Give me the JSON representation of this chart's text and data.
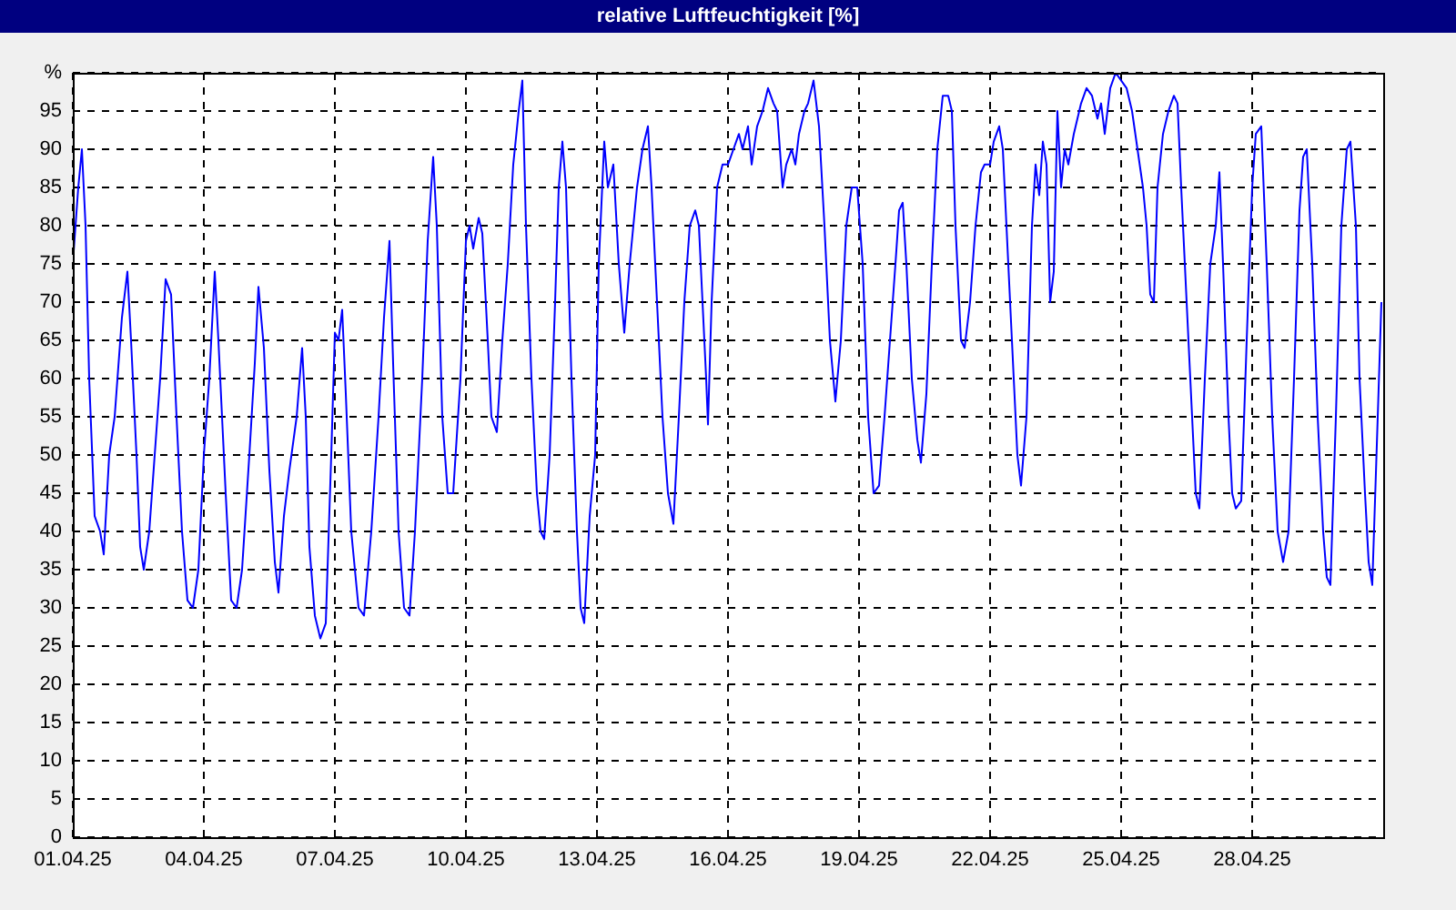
{
  "chart_data": {
    "type": "line",
    "title": "relative Luftfeuchtigkeit [%]",
    "grid": true,
    "marker": "none",
    "line_style": "solid",
    "xlim": [
      "--04-01",
      "--05-01"
    ],
    "xticks": [
      {
        "value": "--04-01",
        "label": "01.04.25"
      },
      {
        "value": "--04-04",
        "label": "04.04.25"
      },
      {
        "value": "--04-07",
        "label": "07.04.25"
      },
      {
        "value": "--04-10",
        "label": "10.04.25"
      },
      {
        "value": "--04-13",
        "label": "13.04.25"
      },
      {
        "value": "--04-16",
        "label": "16.04.25"
      },
      {
        "value": "--04-19",
        "label": "19.04.25"
      },
      {
        "value": "--04-22",
        "label": "22.04.25"
      },
      {
        "value": "--04-25",
        "label": "25.04.25"
      },
      {
        "value": "--04-28",
        "label": "28.04.25"
      }
    ],
    "ylim": [
      0,
      100
    ],
    "yticks": [
      0,
      5,
      10,
      15,
      20,
      25,
      30,
      35,
      40,
      45,
      50,
      55,
      60,
      65,
      70,
      75,
      80,
      85,
      90,
      95,
      {
        "value": 100,
        "label": "%"
      }
    ],
    "x": [
      "--04-01T00:00",
      "--04-01T03:00",
      "--04-01T05:00",
      "--04-01T07:00",
      "--04-01T09:00",
      "--04-01T12:00",
      "--04-01T15:00",
      "--04-01T17:00",
      "--04-01T20:00",
      "--04-01T23:00",
      "--04-02T03:00",
      "--04-02T06:00",
      "--04-02T08:00",
      "--04-02T11:00",
      "--04-02T13:00",
      "--04-02T15:00",
      "--04-02T18:00",
      "--04-02T21:00",
      "--04-03T00:00",
      "--04-03T03:00",
      "--04-03T06:00",
      "--04-03T09:00",
      "--04-03T12:00",
      "--04-03T15:00",
      "--04-03T18:00",
      "--04-03T21:00",
      "--04-04T00:00",
      "--04-04T03:00",
      "--04-04T06:00",
      "--04-04T08:00",
      "--04-04T12:00",
      "--04-04T15:00",
      "--04-04T18:00",
      "--04-04T21:00",
      "--04-05T01:00",
      "--04-05T04:00",
      "--04-05T06:00",
      "--04-05T09:00",
      "--04-05T12:00",
      "--04-05T15:00",
      "--04-05T17:00",
      "--04-05T20:00",
      "--04-05T23:00",
      "--04-06T03:00",
      "--04-06T06:00",
      "--04-06T08:00",
      "--04-06T10:00",
      "--04-06T13:00",
      "--04-06T16:00",
      "--04-06T19:00",
      "--04-06T22:00",
      "--04-07T00:00",
      "--04-07T02:00",
      "--04-07T04:00",
      "--04-07T06:00",
      "--04-07T09:00",
      "--04-07T13:00",
      "--04-07T16:00",
      "--04-07T20:00",
      "--04-08T00:00",
      "--04-08T03:00",
      "--04-08T06:00",
      "--04-08T08:00",
      "--04-08T11:00",
      "--04-08T14:00",
      "--04-08T17:00",
      "--04-08T20:00",
      "--04-09T00:00",
      "--04-09T03:00",
      "--04-09T06:00",
      "--04-09T08:00",
      "--04-09T11:00",
      "--04-09T14:00",
      "--04-09T17:00",
      "--04-09T21:00",
      "--04-10T00:00",
      "--04-10T02:00",
      "--04-10T04:00",
      "--04-10T07:00",
      "--04-10T09:00",
      "--04-10T12:00",
      "--04-10T14:00",
      "--04-10T17:00",
      "--04-10T20:00",
      "--04-10T23:00",
      "--04-11T02:00",
      "--04-11T05:00",
      "--04-11T07:00",
      "--04-11T09:00",
      "--04-11T12:00",
      "--04-11T15:00",
      "--04-11T17:00",
      "--04-11T19:00",
      "--04-11T22:00",
      "--04-12T01:00",
      "--04-12T03:00",
      "--04-12T05:00",
      "--04-12T07:00",
      "--04-12T10:00",
      "--04-12T13:00",
      "--04-12T15:00",
      "--04-12T17:00",
      "--04-12T20:00",
      "--04-12T23:00",
      "--04-13T01:00",
      "--04-13T04:00",
      "--04-13T06:00",
      "--04-13T09:00",
      "--04-13T12:00",
      "--04-13T15:00",
      "--04-13T18:00",
      "--04-13T22:00",
      "--04-14T01:00",
      "--04-14T04:00",
      "--04-14T06:00",
      "--04-14T09:00",
      "--04-14T12:00",
      "--04-14T15:00",
      "--04-14T18:00",
      "--04-14T21:00",
      "--04-15T00:00",
      "--04-15T03:00",
      "--04-15T06:00",
      "--04-15T08:00",
      "--04-15T10:00",
      "--04-15T12:00",
      "--04-15T13:00",
      "--04-15T15:00",
      "--04-15T18:00",
      "--04-15T21:00",
      "--04-16T00:00",
      "--04-16T03:00",
      "--04-16T06:00",
      "--04-16T08:00",
      "--04-16T11:00",
      "--04-16T13:00",
      "--04-16T16:00",
      "--04-16T19:00",
      "--04-16T22:00",
      "--04-17T01:00",
      "--04-17T03:00",
      "--04-17T06:00",
      "--04-17T08:00",
      "--04-17T11:00",
      "--04-17T13:00",
      "--04-17T15:00",
      "--04-17T18:00",
      "--04-17T20:00",
      "--04-17T23:00",
      "--04-18T02:00",
      "--04-18T05:00",
      "--04-18T08:00",
      "--04-18T11:00",
      "--04-18T14:00",
      "--04-18T17:00",
      "--04-18T20:00",
      "--04-18T23:00",
      "--04-19T02:00",
      "--04-19T05:00",
      "--04-19T08:00",
      "--04-19T11:00",
      "--04-19T14:00",
      "--04-19T17:00",
      "--04-19T20:00",
      "--04-19T22:00",
      "--04-20T00:00",
      "--04-20T02:00",
      "--04-20T05:00",
      "--04-20T08:00",
      "--04-20T10:00",
      "--04-20T13:00",
      "--04-20T16:00",
      "--04-20T19:00",
      "--04-20T22:00",
      "--04-21T01:00",
      "--04-21T03:00",
      "--04-21T05:00",
      "--04-21T08:00",
      "--04-21T10:00",
      "--04-21T13:00",
      "--04-21T16:00",
      "--04-21T19:00",
      "--04-21T21:00",
      "--04-22T00:00",
      "--04-22T02:00",
      "--04-22T05:00",
      "--04-22T07:00",
      "--04-22T09:00",
      "--04-22T12:00",
      "--04-22T15:00",
      "--04-22T17:00",
      "--04-22T20:00",
      "--04-22T23:00",
      "--04-23T01:00",
      "--04-23T03:00",
      "--04-23T05:00",
      "--04-23T07:00",
      "--04-23T09:00",
      "--04-23T11:00",
      "--04-23T13:00",
      "--04-23T15:00",
      "--04-23T17:00",
      "--04-23T19:00",
      "--04-23T22:00",
      "--04-24T02:00",
      "--04-24T05:00",
      "--04-24T08:00",
      "--04-24T11:00",
      "--04-24T13:00",
      "--04-24T15:00",
      "--04-24T18:00",
      "--04-24T21:00",
      "--04-25T00:00",
      "--04-25T03:00",
      "--04-25T06:00",
      "--04-25T09:00",
      "--04-25T12:00",
      "--04-25T14:00",
      "--04-25T16:00",
      "--04-25T18:00",
      "--04-25T20:00",
      "--04-25T23:00",
      "--04-26T02:00",
      "--04-26T05:00",
      "--04-26T07:00",
      "--04-26T09:00",
      "--04-26T12:00",
      "--04-26T15:00",
      "--04-26T17:00",
      "--04-26T19:00",
      "--04-26T22:00",
      "--04-27T01:00",
      "--04-27T04:00",
      "--04-27T06:00",
      "--04-27T08:00",
      "--04-27T11:00",
      "--04-27T13:00",
      "--04-27T15:00",
      "--04-27T18:00",
      "--04-27T21:00",
      "--04-28T00:00",
      "--04-28T02:00",
      "--04-28T05:00",
      "--04-28T08:00",
      "--04-28T11:00",
      "--04-28T14:00",
      "--04-28T17:00",
      "--04-28T20:00",
      "--04-28T23:00",
      "--04-29T02:00",
      "--04-29T04:00",
      "--04-29T06:00",
      "--04-29T09:00",
      "--04-29T12:00",
      "--04-29T15:00",
      "--04-29T17:00",
      "--04-29T19:00",
      "--04-29T22:00",
      "--04-30T01:00",
      "--04-30T04:00",
      "--04-30T06:00",
      "--04-30T09:00",
      "--04-30T11:00",
      "--04-30T14:00",
      "--04-30T16:00",
      "--04-30T18:00",
      "--04-30T21:00",
      "--04-30T23:00"
    ],
    "series": [
      {
        "color": "#0000ff",
        "values": [
          75,
          85,
          90,
          80,
          60,
          42,
          40,
          37,
          50,
          55,
          68,
          74,
          65,
          50,
          38,
          35,
          40,
          50,
          60,
          73,
          71,
          55,
          40,
          31,
          30,
          35,
          50,
          60,
          74,
          65,
          45,
          31,
          30,
          35,
          50,
          62,
          72,
          64,
          48,
          36,
          32,
          42,
          48,
          55,
          64,
          55,
          38,
          29,
          26,
          28,
          50,
          66,
          65,
          69,
          58,
          40,
          30,
          29,
          40,
          55,
          68,
          78,
          62,
          40,
          30,
          29,
          40,
          60,
          78,
          89,
          80,
          55,
          45,
          45,
          60,
          78,
          80,
          77,
          81,
          79,
          65,
          55,
          53,
          65,
          75,
          88,
          95,
          99,
          80,
          60,
          45,
          40,
          39,
          50,
          70,
          85,
          91,
          85,
          60,
          40,
          30,
          28,
          42,
          50,
          75,
          91,
          85,
          88,
          75,
          66,
          75,
          85,
          90,
          93,
          85,
          70,
          55,
          45,
          41,
          55,
          70,
          80,
          82,
          80,
          70,
          60,
          54,
          70,
          85,
          88,
          88,
          90,
          92,
          90,
          93,
          88,
          93,
          95,
          98,
          96,
          95,
          85,
          88,
          90,
          88,
          92,
          95,
          96,
          99,
          93,
          80,
          65,
          57,
          65,
          80,
          85,
          85,
          75,
          55,
          45,
          46,
          55,
          65,
          75,
          82,
          83,
          75,
          60,
          52,
          49,
          58,
          75,
          90,
          97,
          97,
          95,
          80,
          65,
          64,
          70,
          80,
          87,
          88,
          88,
          91,
          93,
          90,
          80,
          65,
          50,
          46,
          55,
          80,
          88,
          84,
          91,
          88,
          70,
          74,
          95,
          85,
          90,
          88,
          92,
          96,
          98,
          97,
          94,
          96,
          92,
          98,
          100,
          99,
          98,
          95,
          90,
          85,
          80,
          71,
          70,
          85,
          92,
          95,
          97,
          96,
          85,
          70,
          55,
          45,
          43,
          60,
          75,
          80,
          87,
          75,
          55,
          45,
          43,
          44,
          65,
          85,
          92,
          93,
          75,
          55,
          40,
          36,
          40,
          60,
          82,
          89,
          90,
          75,
          55,
          40,
          34,
          33,
          55,
          80,
          90,
          91,
          80,
          60,
          45,
          36,
          33,
          55,
          70
        ]
      }
    ]
  }
}
